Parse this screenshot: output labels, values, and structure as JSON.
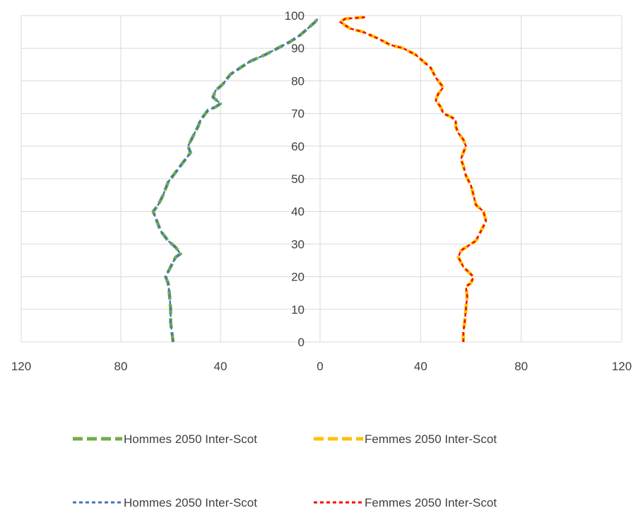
{
  "chart_data": {
    "type": "line",
    "title": "",
    "xlabel": "",
    "ylabel": "",
    "xlim": [
      -120,
      120
    ],
    "ylim": [
      0,
      100
    ],
    "x_ticks": [
      -120,
      -80,
      -40,
      0,
      40,
      80,
      120
    ],
    "x_tick_labels": [
      "120",
      "80",
      "40",
      "0",
      "40",
      "80",
      "120"
    ],
    "y_ticks": [
      0,
      10,
      20,
      30,
      40,
      50,
      60,
      70,
      80,
      90,
      100
    ],
    "y_tick_labels": [
      "0",
      "10",
      "20",
      "30",
      "40",
      "50",
      "60",
      "70",
      "80",
      "90",
      "100"
    ],
    "grid": true,
    "legend_position": "bottom",
    "series": [
      {
        "name": "Hommes 2050 Inter-Scot",
        "color": "#70AD47",
        "dash": "long",
        "side": "left",
        "points": [
          [
            -59,
            0
          ],
          [
            -59.5,
            3
          ],
          [
            -60,
            6
          ],
          [
            -60,
            10
          ],
          [
            -60.5,
            15
          ],
          [
            -61,
            18
          ],
          [
            -62,
            20
          ],
          [
            -60,
            23
          ],
          [
            -58,
            26
          ],
          [
            -56,
            27
          ],
          [
            -58,
            29
          ],
          [
            -61,
            31
          ],
          [
            -64,
            34
          ],
          [
            -65,
            36
          ],
          [
            -66,
            38
          ],
          [
            -67,
            40
          ],
          [
            -65,
            42
          ],
          [
            -63,
            45
          ],
          [
            -61,
            49
          ],
          [
            -58,
            52
          ],
          [
            -55,
            55
          ],
          [
            -52,
            58
          ],
          [
            -53,
            60
          ],
          [
            -51,
            63
          ],
          [
            -49,
            66
          ],
          [
            -48,
            68
          ],
          [
            -45,
            71
          ],
          [
            -42,
            72
          ],
          [
            -40,
            73
          ],
          [
            -43,
            75
          ],
          [
            -42,
            77
          ],
          [
            -39,
            79
          ],
          [
            -36,
            82
          ],
          [
            -32,
            84
          ],
          [
            -28,
            86
          ],
          [
            -22,
            88
          ],
          [
            -17,
            90
          ],
          [
            -12,
            92
          ],
          [
            -8,
            94
          ],
          [
            -5,
            96
          ],
          [
            -2,
            98
          ],
          [
            -1,
            99
          ]
        ]
      },
      {
        "name": "Femmes 2050 Inter-Scot",
        "color": "#FFC000",
        "dash": "long",
        "side": "right",
        "points": [
          [
            57,
            0
          ],
          [
            57,
            3
          ],
          [
            57.5,
            6
          ],
          [
            58,
            10
          ],
          [
            58.5,
            14
          ],
          [
            58,
            17
          ],
          [
            60,
            18
          ],
          [
            61,
            20
          ],
          [
            57,
            23
          ],
          [
            55,
            26
          ],
          [
            56,
            28
          ],
          [
            58,
            29
          ],
          [
            62,
            31
          ],
          [
            64,
            34
          ],
          [
            66,
            37
          ],
          [
            65,
            40
          ],
          [
            62,
            42
          ],
          [
            61,
            45
          ],
          [
            60,
            48
          ],
          [
            58,
            51
          ],
          [
            57,
            54
          ],
          [
            56,
            56
          ],
          [
            57,
            58
          ],
          [
            58,
            60
          ],
          [
            57,
            62
          ],
          [
            55,
            64
          ],
          [
            54,
            66
          ],
          [
            54,
            68
          ],
          [
            52,
            69
          ],
          [
            49,
            70
          ],
          [
            48,
            72
          ],
          [
            46,
            74
          ],
          [
            47,
            76
          ],
          [
            49,
            78
          ],
          [
            46,
            81
          ],
          [
            44,
            84
          ],
          [
            41,
            86
          ],
          [
            38,
            88
          ],
          [
            33,
            90
          ],
          [
            28,
            91
          ],
          [
            23,
            93
          ],
          [
            17,
            95
          ],
          [
            12,
            96
          ],
          [
            8,
            98
          ],
          [
            10,
            99
          ],
          [
            18,
            99.5
          ]
        ]
      },
      {
        "name": "Hommes 2050 Inter-Scot",
        "color": "#4472C4",
        "dash": "short",
        "side": "left",
        "points": [
          [
            -59,
            0
          ],
          [
            -59.5,
            3
          ],
          [
            -60,
            6
          ],
          [
            -60,
            10
          ],
          [
            -60.5,
            15
          ],
          [
            -61,
            18
          ],
          [
            -62,
            20
          ],
          [
            -60,
            23
          ],
          [
            -58,
            26
          ],
          [
            -56,
            27
          ],
          [
            -58,
            29
          ],
          [
            -61,
            31
          ],
          [
            -64,
            34
          ],
          [
            -65,
            36
          ],
          [
            -66,
            38
          ],
          [
            -67,
            40
          ],
          [
            -65,
            42
          ],
          [
            -63,
            45
          ],
          [
            -61,
            49
          ],
          [
            -58,
            52
          ],
          [
            -55,
            55
          ],
          [
            -52,
            58
          ],
          [
            -53,
            60
          ],
          [
            -51,
            63
          ],
          [
            -49,
            66
          ],
          [
            -48,
            68
          ],
          [
            -45,
            71
          ],
          [
            -42,
            72
          ],
          [
            -40,
            73
          ],
          [
            -43,
            75
          ],
          [
            -42,
            77
          ],
          [
            -39,
            79
          ],
          [
            -36,
            82
          ],
          [
            -32,
            84
          ],
          [
            -28,
            86
          ],
          [
            -22,
            88
          ],
          [
            -17,
            90
          ],
          [
            -12,
            92
          ],
          [
            -8,
            94
          ],
          [
            -5,
            96
          ],
          [
            -2,
            98
          ],
          [
            -1,
            99
          ]
        ]
      },
      {
        "name": "Femmes 2050 Inter-Scot",
        "color": "#FF0000",
        "dash": "short",
        "side": "right",
        "points": [
          [
            57,
            0
          ],
          [
            57,
            3
          ],
          [
            57.5,
            6
          ],
          [
            58,
            10
          ],
          [
            58.5,
            14
          ],
          [
            58,
            17
          ],
          [
            60,
            18
          ],
          [
            61,
            20
          ],
          [
            57,
            23
          ],
          [
            55,
            26
          ],
          [
            56,
            28
          ],
          [
            58,
            29
          ],
          [
            62,
            31
          ],
          [
            64,
            34
          ],
          [
            66,
            37
          ],
          [
            65,
            40
          ],
          [
            62,
            42
          ],
          [
            61,
            45
          ],
          [
            60,
            48
          ],
          [
            58,
            51
          ],
          [
            57,
            54
          ],
          [
            56,
            56
          ],
          [
            57,
            58
          ],
          [
            58,
            60
          ],
          [
            57,
            62
          ],
          [
            55,
            64
          ],
          [
            54,
            66
          ],
          [
            54,
            68
          ],
          [
            52,
            69
          ],
          [
            49,
            70
          ],
          [
            48,
            72
          ],
          [
            46,
            74
          ],
          [
            47,
            76
          ],
          [
            49,
            78
          ],
          [
            46,
            81
          ],
          [
            44,
            84
          ],
          [
            41,
            86
          ],
          [
            38,
            88
          ],
          [
            33,
            90
          ],
          [
            28,
            91
          ],
          [
            23,
            93
          ],
          [
            17,
            95
          ],
          [
            12,
            96
          ],
          [
            8,
            98
          ],
          [
            10,
            99
          ],
          [
            18,
            99.5
          ]
        ]
      }
    ]
  }
}
